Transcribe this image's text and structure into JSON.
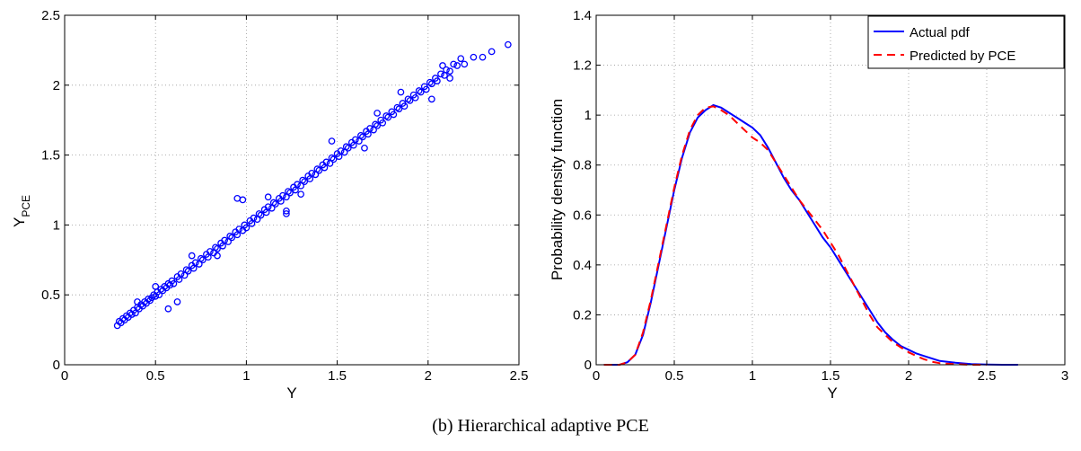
{
  "caption": "(b) Hierarchical adaptive PCE",
  "chart_data": [
    {
      "type": "scatter",
      "title": "",
      "xlabel": "Y",
      "ylabel_main": "Y",
      "ylabel_sub": "PCE",
      "xlim": [
        0,
        2.5
      ],
      "ylim": [
        0,
        2.5
      ],
      "xticks": [
        0,
        0.5,
        1,
        1.5,
        2,
        2.5
      ],
      "xtick_labels": [
        "0",
        "0.5",
        "1",
        "1.5",
        "2",
        "2.5"
      ],
      "yticks": [
        0,
        0.5,
        1,
        1.5,
        2,
        2.5
      ],
      "ytick_labels": [
        "0",
        "0.5",
        "1",
        "1.5",
        "2",
        "2.5"
      ],
      "grid": true,
      "marker": "open-circle",
      "color": "#0000ff",
      "points": [
        [
          0.29,
          0.28
        ],
        [
          0.3,
          0.31
        ],
        [
          0.31,
          0.3
        ],
        [
          0.32,
          0.33
        ],
        [
          0.33,
          0.32
        ],
        [
          0.34,
          0.35
        ],
        [
          0.35,
          0.34
        ],
        [
          0.36,
          0.37
        ],
        [
          0.37,
          0.36
        ],
        [
          0.38,
          0.39
        ],
        [
          0.39,
          0.37
        ],
        [
          0.4,
          0.41
        ],
        [
          0.41,
          0.4
        ],
        [
          0.42,
          0.43
        ],
        [
          0.43,
          0.42
        ],
        [
          0.44,
          0.45
        ],
        [
          0.45,
          0.44
        ],
        [
          0.46,
          0.47
        ],
        [
          0.47,
          0.46
        ],
        [
          0.48,
          0.48
        ],
        [
          0.49,
          0.5
        ],
        [
          0.5,
          0.49
        ],
        [
          0.51,
          0.52
        ],
        [
          0.52,
          0.5
        ],
        [
          0.53,
          0.54
        ],
        [
          0.54,
          0.53
        ],
        [
          0.55,
          0.56
        ],
        [
          0.56,
          0.55
        ],
        [
          0.57,
          0.58
        ],
        [
          0.58,
          0.57
        ],
        [
          0.59,
          0.6
        ],
        [
          0.6,
          0.58
        ],
        [
          0.62,
          0.63
        ],
        [
          0.63,
          0.61
        ],
        [
          0.64,
          0.65
        ],
        [
          0.66,
          0.64
        ],
        [
          0.67,
          0.68
        ],
        [
          0.68,
          0.67
        ],
        [
          0.7,
          0.71
        ],
        [
          0.71,
          0.69
        ],
        [
          0.72,
          0.73
        ],
        [
          0.74,
          0.72
        ],
        [
          0.75,
          0.76
        ],
        [
          0.76,
          0.75
        ],
        [
          0.78,
          0.79
        ],
        [
          0.79,
          0.77
        ],
        [
          0.8,
          0.81
        ],
        [
          0.82,
          0.8
        ],
        [
          0.83,
          0.84
        ],
        [
          0.84,
          0.83
        ],
        [
          0.86,
          0.87
        ],
        [
          0.87,
          0.85
        ],
        [
          0.88,
          0.89
        ],
        [
          0.9,
          0.88
        ],
        [
          0.91,
          0.92
        ],
        [
          0.92,
          0.91
        ],
        [
          0.94,
          0.95
        ],
        [
          0.95,
          0.93
        ],
        [
          0.96,
          0.97
        ],
        [
          0.98,
          0.96
        ],
        [
          0.99,
          1.0
        ],
        [
          1.0,
          0.98
        ],
        [
          1.02,
          1.03
        ],
        [
          1.03,
          1.01
        ],
        [
          1.04,
          1.05
        ],
        [
          1.06,
          1.04
        ],
        [
          1.07,
          1.08
        ],
        [
          1.08,
          1.07
        ],
        [
          1.1,
          1.11
        ],
        [
          1.11,
          1.09
        ],
        [
          1.12,
          1.13
        ],
        [
          1.14,
          1.12
        ],
        [
          1.15,
          1.16
        ],
        [
          1.16,
          1.15
        ],
        [
          1.18,
          1.19
        ],
        [
          1.19,
          1.17
        ],
        [
          1.2,
          1.21
        ],
        [
          1.22,
          1.2
        ],
        [
          1.23,
          1.24
        ],
        [
          1.24,
          1.23
        ],
        [
          1.26,
          1.27
        ],
        [
          1.27,
          1.25
        ],
        [
          1.28,
          1.29
        ],
        [
          1.3,
          1.28
        ],
        [
          1.31,
          1.32
        ],
        [
          1.32,
          1.31
        ],
        [
          1.34,
          1.35
        ],
        [
          1.35,
          1.33
        ],
        [
          1.36,
          1.37
        ],
        [
          1.38,
          1.36
        ],
        [
          1.39,
          1.4
        ],
        [
          1.4,
          1.39
        ],
        [
          1.42,
          1.43
        ],
        [
          1.43,
          1.41
        ],
        [
          1.44,
          1.45
        ],
        [
          1.46,
          1.44
        ],
        [
          1.47,
          1.48
        ],
        [
          1.48,
          1.47
        ],
        [
          1.5,
          1.51
        ],
        [
          1.51,
          1.49
        ],
        [
          1.52,
          1.53
        ],
        [
          1.54,
          1.52
        ],
        [
          1.55,
          1.56
        ],
        [
          1.56,
          1.55
        ],
        [
          1.58,
          1.59
        ],
        [
          1.59,
          1.57
        ],
        [
          1.6,
          1.61
        ],
        [
          1.62,
          1.6
        ],
        [
          1.63,
          1.64
        ],
        [
          1.64,
          1.63
        ],
        [
          1.66,
          1.67
        ],
        [
          1.67,
          1.65
        ],
        [
          1.68,
          1.69
        ],
        [
          1.7,
          1.68
        ],
        [
          1.71,
          1.72
        ],
        [
          1.72,
          1.71
        ],
        [
          1.74,
          1.75
        ],
        [
          1.75,
          1.73
        ],
        [
          1.77,
          1.78
        ],
        [
          1.78,
          1.77
        ],
        [
          1.8,
          1.81
        ],
        [
          1.81,
          1.79
        ],
        [
          1.83,
          1.84
        ],
        [
          1.84,
          1.83
        ],
        [
          1.86,
          1.87
        ],
        [
          1.87,
          1.85
        ],
        [
          1.89,
          1.9
        ],
        [
          1.9,
          1.89
        ],
        [
          1.92,
          1.93
        ],
        [
          1.93,
          1.91
        ],
        [
          1.95,
          1.96
        ],
        [
          1.96,
          1.95
        ],
        [
          1.98,
          1.99
        ],
        [
          1.99,
          1.97
        ],
        [
          2.01,
          2.02
        ],
        [
          2.02,
          2.01
        ],
        [
          2.04,
          2.05
        ],
        [
          2.05,
          2.03
        ],
        [
          2.07,
          2.08
        ],
        [
          2.09,
          2.07
        ],
        [
          2.1,
          2.11
        ],
        [
          2.12,
          2.1
        ],
        [
          2.14,
          2.15
        ],
        [
          2.16,
          2.14
        ],
        [
          2.18,
          2.19
        ],
        [
          0.95,
          1.19
        ],
        [
          0.98,
          1.18
        ],
        [
          1.22,
          1.08
        ],
        [
          1.22,
          1.1
        ],
        [
          0.57,
          0.4
        ],
        [
          0.62,
          0.45
        ],
        [
          0.4,
          0.45
        ],
        [
          2.02,
          1.9
        ],
        [
          1.47,
          1.6
        ],
        [
          1.65,
          1.55
        ],
        [
          2.2,
          2.15
        ],
        [
          2.25,
          2.2
        ],
        [
          2.3,
          2.2
        ],
        [
          2.35,
          2.24
        ],
        [
          2.44,
          2.29
        ],
        [
          2.12,
          2.05
        ],
        [
          1.85,
          1.95
        ],
        [
          2.08,
          2.14
        ],
        [
          0.84,
          0.78
        ],
        [
          1.12,
          1.2
        ],
        [
          1.3,
          1.22
        ],
        [
          1.72,
          1.8
        ],
        [
          0.7,
          0.78
        ],
        [
          0.5,
          0.56
        ]
      ]
    },
    {
      "type": "line",
      "title": "",
      "xlabel": "Y",
      "ylabel": "Probability density function",
      "xlim": [
        0,
        3
      ],
      "ylim": [
        0,
        1.4
      ],
      "xticks": [
        0,
        0.5,
        1,
        1.5,
        2,
        2.5,
        3
      ],
      "xtick_labels": [
        "0",
        "0.5",
        "1",
        "1.5",
        "2",
        "2.5",
        "3"
      ],
      "yticks": [
        0,
        0.2,
        0.4,
        0.6,
        0.8,
        1,
        1.2,
        1.4
      ],
      "ytick_labels": [
        "0",
        "0.2",
        "0.4",
        "0.6",
        "0.8",
        "1",
        "1.2",
        "1.4"
      ],
      "grid": true,
      "legend_position": "top-right",
      "series": [
        {
          "name": "Actual pdf",
          "color": "#0000ff",
          "dash": "solid",
          "x": [
            0.05,
            0.1,
            0.15,
            0.2,
            0.25,
            0.3,
            0.35,
            0.4,
            0.45,
            0.5,
            0.55,
            0.6,
            0.65,
            0.7,
            0.75,
            0.8,
            0.85,
            0.9,
            0.95,
            1.0,
            1.05,
            1.1,
            1.15,
            1.2,
            1.25,
            1.3,
            1.35,
            1.4,
            1.45,
            1.5,
            1.55,
            1.6,
            1.65,
            1.7,
            1.75,
            1.8,
            1.85,
            1.9,
            1.95,
            2.0,
            2.05,
            2.1,
            2.15,
            2.2,
            2.3,
            2.4,
            2.5,
            2.6,
            2.7
          ],
          "y": [
            0.0,
            0.0,
            0.0,
            0.01,
            0.04,
            0.12,
            0.25,
            0.4,
            0.55,
            0.7,
            0.83,
            0.93,
            0.99,
            1.02,
            1.04,
            1.03,
            1.01,
            0.99,
            0.97,
            0.95,
            0.92,
            0.87,
            0.81,
            0.75,
            0.7,
            0.66,
            0.61,
            0.56,
            0.51,
            0.47,
            0.42,
            0.37,
            0.32,
            0.27,
            0.22,
            0.17,
            0.13,
            0.1,
            0.075,
            0.06,
            0.045,
            0.035,
            0.025,
            0.015,
            0.008,
            0.003,
            0.001,
            0.0,
            0.0
          ]
        },
        {
          "name": "Predicted by PCE",
          "color": "#ff0000",
          "dash": "dashed",
          "x": [
            0.05,
            0.1,
            0.15,
            0.2,
            0.25,
            0.3,
            0.35,
            0.4,
            0.45,
            0.5,
            0.55,
            0.6,
            0.65,
            0.7,
            0.75,
            0.8,
            0.85,
            0.9,
            0.95,
            1.0,
            1.05,
            1.1,
            1.15,
            1.2,
            1.25,
            1.3,
            1.35,
            1.4,
            1.45,
            1.5,
            1.55,
            1.6,
            1.65,
            1.7,
            1.75,
            1.8,
            1.85,
            1.9,
            1.95,
            2.0,
            2.05,
            2.1,
            2.15,
            2.2,
            2.3,
            2.4,
            2.5
          ],
          "y": [
            0.0,
            0.0,
            0.0,
            0.01,
            0.04,
            0.13,
            0.26,
            0.41,
            0.56,
            0.71,
            0.84,
            0.94,
            1.0,
            1.03,
            1.035,
            1.02,
            1.0,
            0.97,
            0.94,
            0.91,
            0.89,
            0.86,
            0.81,
            0.76,
            0.71,
            0.66,
            0.62,
            0.58,
            0.54,
            0.49,
            0.44,
            0.38,
            0.32,
            0.26,
            0.2,
            0.15,
            0.12,
            0.09,
            0.07,
            0.05,
            0.035,
            0.022,
            0.012,
            0.006,
            0.002,
            0.0,
            0.0
          ]
        }
      ]
    }
  ]
}
